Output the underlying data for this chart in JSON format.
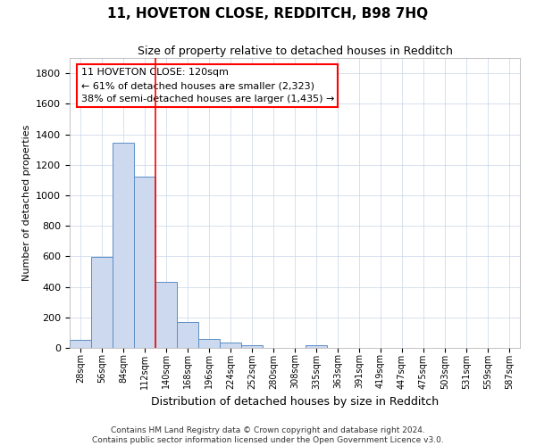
{
  "title": "11, HOVETON CLOSE, REDDITCH, B98 7HQ",
  "subtitle": "Size of property relative to detached houses in Redditch",
  "xlabel": "Distribution of detached houses by size in Redditch",
  "ylabel": "Number of detached properties",
  "footer_line1": "Contains HM Land Registry data © Crown copyright and database right 2024.",
  "footer_line2": "Contains public sector information licensed under the Open Government Licence v3.0.",
  "bar_values": [
    55,
    595,
    1345,
    1120,
    430,
    170,
    60,
    35,
    15,
    0,
    0,
    15,
    0,
    0,
    0,
    0,
    0,
    0,
    0,
    0,
    0
  ],
  "bar_color": "#ccd9ee",
  "bar_edge_color": "#5b8fc7",
  "categories": [
    "28sqm",
    "56sqm",
    "84sqm",
    "112sqm",
    "140sqm",
    "168sqm",
    "196sqm",
    "224sqm",
    "252sqm",
    "280sqm",
    "308sqm",
    "335sqm",
    "363sqm",
    "391sqm",
    "419sqm",
    "447sqm",
    "475sqm",
    "503sqm",
    "531sqm",
    "559sqm",
    "587sqm"
  ],
  "red_line_x": 3.5,
  "annotation_line1": "11 HOVETON CLOSE: 120sqm",
  "annotation_line2": "← 61% of detached houses are smaller (2,323)",
  "annotation_line3": "38% of semi-detached houses are larger (1,435) →",
  "ylim": [
    0,
    1900
  ],
  "yticks": [
    0,
    200,
    400,
    600,
    800,
    1000,
    1200,
    1400,
    1600,
    1800
  ],
  "background_color": "#ffffff",
  "grid_color": "#c8d4e8"
}
